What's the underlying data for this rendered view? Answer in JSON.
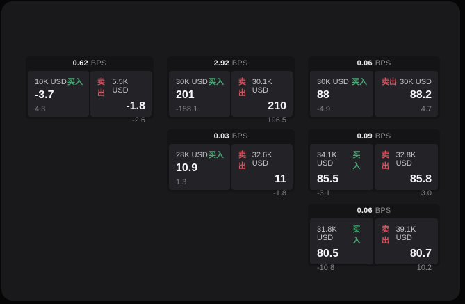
{
  "labels": {
    "bps": "BPS",
    "buy": "买入",
    "sell": "卖出"
  },
  "colors": {
    "background": "#060606",
    "surface": "#19191b",
    "card": "#141416",
    "panel": "#232327",
    "buy_green": "#47a874",
    "sell_red": "#d25460"
  },
  "cards": [
    {
      "bps": "0.62",
      "col": 0,
      "row": 0,
      "buy": {
        "amount": "10K USD",
        "price": "-3.7",
        "delta": "4.3"
      },
      "sell": {
        "amount": "5.5K USD",
        "price": "-1.8",
        "delta": "-2.6"
      }
    },
    {
      "bps": "2.92",
      "col": 1,
      "row": 0,
      "buy": {
        "amount": "30K USD",
        "price": "201",
        "delta": "-188.1"
      },
      "sell": {
        "amount": "30.1K USD",
        "price": "210",
        "delta": "196.5"
      }
    },
    {
      "bps": "0.06",
      "col": 2,
      "row": 0,
      "buy": {
        "amount": "30K USD",
        "price": "88",
        "delta": "-4.9"
      },
      "sell": {
        "amount": "30K USD",
        "price": "88.2",
        "delta": "4.7"
      }
    },
    {
      "bps": "0.03",
      "col": 1,
      "row": 1,
      "buy": {
        "amount": "28K USD",
        "price": "10.9",
        "delta": "1.3"
      },
      "sell": {
        "amount": "32.6K USD",
        "price": "11",
        "delta": "-1.8"
      }
    },
    {
      "bps": "0.09",
      "col": 2,
      "row": 1,
      "buy": {
        "amount": "34.1K USD",
        "price": "85.5",
        "delta": "-3.1"
      },
      "sell": {
        "amount": "32.8K USD",
        "price": "85.8",
        "delta": "3.0"
      }
    },
    {
      "bps": "0.06",
      "col": 2,
      "row": 2,
      "buy": {
        "amount": "31.8K USD",
        "price": "80.5",
        "delta": "-10.8"
      },
      "sell": {
        "amount": "39.1K USD",
        "price": "80.7",
        "delta": "10.2"
      }
    }
  ]
}
